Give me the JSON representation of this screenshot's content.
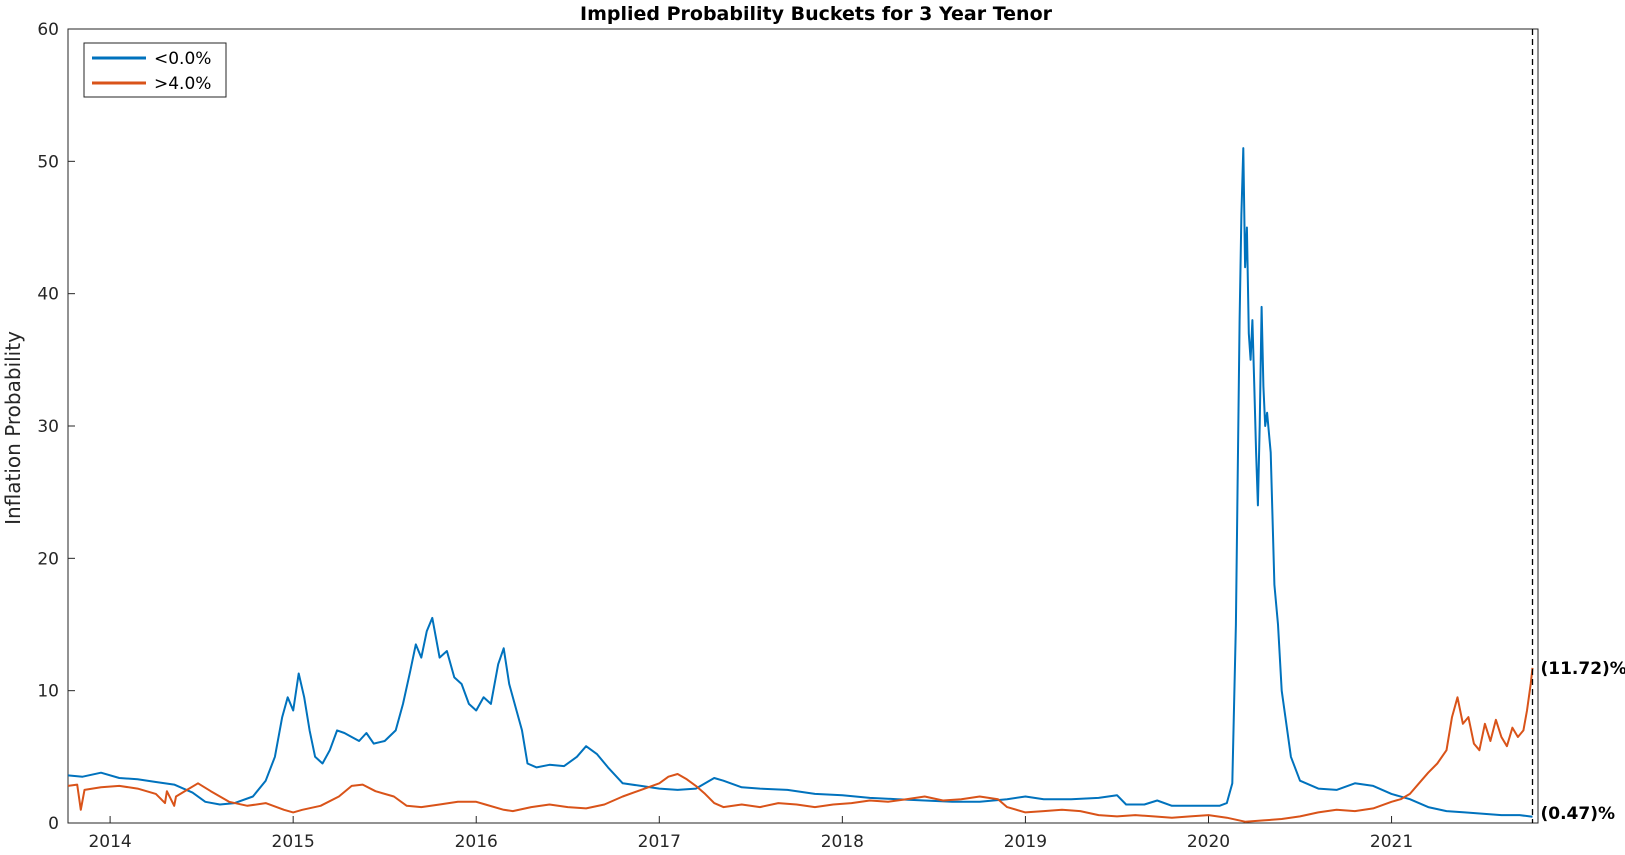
{
  "chart_data": {
    "type": "line",
    "title": "Implied Probability Buckets for 3 Year Tenor",
    "xlabel": "",
    "ylabel": "Inflation Probability",
    "xlim": [
      2013.77,
      2021.8
    ],
    "ylim": [
      0,
      60
    ],
    "yticks": [
      0,
      10,
      20,
      30,
      40,
      50,
      60
    ],
    "xticks": [
      2014,
      2015,
      2016,
      2017,
      2018,
      2019,
      2020,
      2021
    ],
    "xtick_labels": [
      "2014",
      "2015",
      "2016",
      "2017",
      "2018",
      "2019",
      "2020",
      "2021"
    ],
    "legend_position": "top-left",
    "marker_line": {
      "x": 2021.77,
      "style": "dashed",
      "color": "#000000"
    },
    "series": [
      {
        "name": "<0.0%",
        "color": "#0072BD",
        "end_label": "(0.47)%",
        "points": [
          [
            2013.77,
            3.6
          ],
          [
            2013.85,
            3.5
          ],
          [
            2013.95,
            3.8
          ],
          [
            2014.05,
            3.4
          ],
          [
            2014.15,
            3.3
          ],
          [
            2014.25,
            3.1
          ],
          [
            2014.35,
            2.9
          ],
          [
            2014.45,
            2.3
          ],
          [
            2014.52,
            1.6
          ],
          [
            2014.6,
            1.4
          ],
          [
            2014.68,
            1.5
          ],
          [
            2014.78,
            2.0
          ],
          [
            2014.85,
            3.2
          ],
          [
            2014.9,
            5.0
          ],
          [
            2014.94,
            8.0
          ],
          [
            2014.97,
            9.5
          ],
          [
            2015.0,
            8.5
          ],
          [
            2015.03,
            11.3
          ],
          [
            2015.06,
            9.5
          ],
          [
            2015.09,
            7.0
          ],
          [
            2015.12,
            5.0
          ],
          [
            2015.16,
            4.5
          ],
          [
            2015.2,
            5.5
          ],
          [
            2015.24,
            7.0
          ],
          [
            2015.28,
            6.8
          ],
          [
            2015.32,
            6.5
          ],
          [
            2015.36,
            6.2
          ],
          [
            2015.4,
            6.8
          ],
          [
            2015.44,
            6.0
          ],
          [
            2015.5,
            6.2
          ],
          [
            2015.56,
            7.0
          ],
          [
            2015.6,
            9.0
          ],
          [
            2015.64,
            11.5
          ],
          [
            2015.67,
            13.5
          ],
          [
            2015.7,
            12.5
          ],
          [
            2015.73,
            14.5
          ],
          [
            2015.76,
            15.5
          ],
          [
            2015.8,
            12.5
          ],
          [
            2015.84,
            13.0
          ],
          [
            2015.88,
            11.0
          ],
          [
            2015.92,
            10.5
          ],
          [
            2015.96,
            9.0
          ],
          [
            2016.0,
            8.5
          ],
          [
            2016.04,
            9.5
          ],
          [
            2016.08,
            9.0
          ],
          [
            2016.12,
            12.0
          ],
          [
            2016.15,
            13.2
          ],
          [
            2016.18,
            10.5
          ],
          [
            2016.22,
            8.5
          ],
          [
            2016.25,
            7.0
          ],
          [
            2016.28,
            4.5
          ],
          [
            2016.33,
            4.2
          ],
          [
            2016.4,
            4.4
          ],
          [
            2016.48,
            4.3
          ],
          [
            2016.55,
            5.0
          ],
          [
            2016.6,
            5.8
          ],
          [
            2016.66,
            5.2
          ],
          [
            2016.72,
            4.2
          ],
          [
            2016.8,
            3.0
          ],
          [
            2016.9,
            2.8
          ],
          [
            2017.0,
            2.6
          ],
          [
            2017.1,
            2.5
          ],
          [
            2017.2,
            2.6
          ],
          [
            2017.3,
            3.4
          ],
          [
            2017.35,
            3.2
          ],
          [
            2017.45,
            2.7
          ],
          [
            2017.55,
            2.6
          ],
          [
            2017.7,
            2.5
          ],
          [
            2017.85,
            2.2
          ],
          [
            2018.0,
            2.1
          ],
          [
            2018.15,
            1.9
          ],
          [
            2018.3,
            1.8
          ],
          [
            2018.45,
            1.7
          ],
          [
            2018.6,
            1.6
          ],
          [
            2018.75,
            1.6
          ],
          [
            2018.9,
            1.8
          ],
          [
            2019.0,
            2.0
          ],
          [
            2019.1,
            1.8
          ],
          [
            2019.25,
            1.8
          ],
          [
            2019.4,
            1.9
          ],
          [
            2019.5,
            2.1
          ],
          [
            2019.55,
            1.4
          ],
          [
            2019.65,
            1.4
          ],
          [
            2019.72,
            1.7
          ],
          [
            2019.8,
            1.3
          ],
          [
            2019.9,
            1.3
          ],
          [
            2020.0,
            1.3
          ],
          [
            2020.06,
            1.3
          ],
          [
            2020.1,
            1.5
          ],
          [
            2020.13,
            3.0
          ],
          [
            2020.15,
            15.0
          ],
          [
            2020.17,
            38.0
          ],
          [
            2020.18,
            46.0
          ],
          [
            2020.19,
            51.0
          ],
          [
            2020.2,
            42.0
          ],
          [
            2020.21,
            45.0
          ],
          [
            2020.22,
            37.0
          ],
          [
            2020.23,
            35.0
          ],
          [
            2020.24,
            38.0
          ],
          [
            2020.25,
            33.0
          ],
          [
            2020.26,
            28.0
          ],
          [
            2020.27,
            24.0
          ],
          [
            2020.28,
            30.0
          ],
          [
            2020.29,
            39.0
          ],
          [
            2020.3,
            33.0
          ],
          [
            2020.31,
            30.0
          ],
          [
            2020.32,
            31.0
          ],
          [
            2020.34,
            28.0
          ],
          [
            2020.36,
            18.0
          ],
          [
            2020.38,
            15.0
          ],
          [
            2020.4,
            10.0
          ],
          [
            2020.42,
            8.0
          ],
          [
            2020.45,
            5.0
          ],
          [
            2020.5,
            3.2
          ],
          [
            2020.6,
            2.6
          ],
          [
            2020.7,
            2.5
          ],
          [
            2020.8,
            3.0
          ],
          [
            2020.9,
            2.8
          ],
          [
            2021.0,
            2.2
          ],
          [
            2021.1,
            1.8
          ],
          [
            2021.2,
            1.2
          ],
          [
            2021.3,
            0.9
          ],
          [
            2021.4,
            0.8
          ],
          [
            2021.5,
            0.7
          ],
          [
            2021.6,
            0.6
          ],
          [
            2021.7,
            0.6
          ],
          [
            2021.77,
            0.47
          ]
        ]
      },
      {
        "name": ">4.0%",
        "color": "#D95319",
        "end_label": "(11.72)%",
        "points": [
          [
            2013.77,
            2.8
          ],
          [
            2013.82,
            2.9
          ],
          [
            2013.84,
            1.0
          ],
          [
            2013.86,
            2.5
          ],
          [
            2013.95,
            2.7
          ],
          [
            2014.05,
            2.8
          ],
          [
            2014.15,
            2.6
          ],
          [
            2014.25,
            2.2
          ],
          [
            2014.3,
            1.5
          ],
          [
            2014.31,
            2.4
          ],
          [
            2014.35,
            1.3
          ],
          [
            2014.36,
            2.0
          ],
          [
            2014.42,
            2.5
          ],
          [
            2014.48,
            3.0
          ],
          [
            2014.55,
            2.4
          ],
          [
            2014.65,
            1.6
          ],
          [
            2014.75,
            1.3
          ],
          [
            2014.85,
            1.5
          ],
          [
            2014.95,
            1.0
          ],
          [
            2015.0,
            0.8
          ],
          [
            2015.05,
            1.0
          ],
          [
            2015.15,
            1.3
          ],
          [
            2015.25,
            2.0
          ],
          [
            2015.32,
            2.8
          ],
          [
            2015.38,
            2.9
          ],
          [
            2015.45,
            2.4
          ],
          [
            2015.55,
            2.0
          ],
          [
            2015.62,
            1.3
          ],
          [
            2015.7,
            1.2
          ],
          [
            2015.8,
            1.4
          ],
          [
            2015.9,
            1.6
          ],
          [
            2016.0,
            1.6
          ],
          [
            2016.05,
            1.4
          ],
          [
            2016.15,
            1.0
          ],
          [
            2016.2,
            0.9
          ],
          [
            2016.3,
            1.2
          ],
          [
            2016.4,
            1.4
          ],
          [
            2016.5,
            1.2
          ],
          [
            2016.6,
            1.1
          ],
          [
            2016.7,
            1.4
          ],
          [
            2016.8,
            2.0
          ],
          [
            2016.9,
            2.5
          ],
          [
            2017.0,
            3.0
          ],
          [
            2017.05,
            3.5
          ],
          [
            2017.1,
            3.7
          ],
          [
            2017.15,
            3.3
          ],
          [
            2017.2,
            2.8
          ],
          [
            2017.25,
            2.2
          ],
          [
            2017.3,
            1.5
          ],
          [
            2017.35,
            1.2
          ],
          [
            2017.45,
            1.4
          ],
          [
            2017.55,
            1.2
          ],
          [
            2017.65,
            1.5
          ],
          [
            2017.75,
            1.4
          ],
          [
            2017.85,
            1.2
          ],
          [
            2017.95,
            1.4
          ],
          [
            2018.05,
            1.5
          ],
          [
            2018.15,
            1.7
          ],
          [
            2018.25,
            1.6
          ],
          [
            2018.35,
            1.8
          ],
          [
            2018.45,
            2.0
          ],
          [
            2018.55,
            1.7
          ],
          [
            2018.65,
            1.8
          ],
          [
            2018.75,
            2.0
          ],
          [
            2018.85,
            1.8
          ],
          [
            2018.9,
            1.2
          ],
          [
            2019.0,
            0.8
          ],
          [
            2019.1,
            0.9
          ],
          [
            2019.2,
            1.0
          ],
          [
            2019.3,
            0.9
          ],
          [
            2019.4,
            0.6
          ],
          [
            2019.5,
            0.5
          ],
          [
            2019.6,
            0.6
          ],
          [
            2019.7,
            0.5
          ],
          [
            2019.8,
            0.4
          ],
          [
            2019.9,
            0.5
          ],
          [
            2020.0,
            0.6
          ],
          [
            2020.1,
            0.4
          ],
          [
            2020.2,
            0.1
          ],
          [
            2020.3,
            0.2
          ],
          [
            2020.4,
            0.3
          ],
          [
            2020.5,
            0.5
          ],
          [
            2020.6,
            0.8
          ],
          [
            2020.7,
            1.0
          ],
          [
            2020.8,
            0.9
          ],
          [
            2020.9,
            1.1
          ],
          [
            2021.0,
            1.6
          ],
          [
            2021.05,
            1.8
          ],
          [
            2021.1,
            2.2
          ],
          [
            2021.15,
            3.0
          ],
          [
            2021.2,
            3.8
          ],
          [
            2021.25,
            4.5
          ],
          [
            2021.3,
            5.5
          ],
          [
            2021.33,
            8.0
          ],
          [
            2021.36,
            9.5
          ],
          [
            2021.39,
            7.5
          ],
          [
            2021.42,
            8.0
          ],
          [
            2021.45,
            6.0
          ],
          [
            2021.48,
            5.5
          ],
          [
            2021.51,
            7.5
          ],
          [
            2021.54,
            6.2
          ],
          [
            2021.57,
            7.8
          ],
          [
            2021.6,
            6.5
          ],
          [
            2021.63,
            5.8
          ],
          [
            2021.66,
            7.2
          ],
          [
            2021.69,
            6.5
          ],
          [
            2021.72,
            7.0
          ],
          [
            2021.74,
            8.5
          ],
          [
            2021.76,
            10.5
          ],
          [
            2021.77,
            11.72
          ]
        ]
      }
    ]
  }
}
